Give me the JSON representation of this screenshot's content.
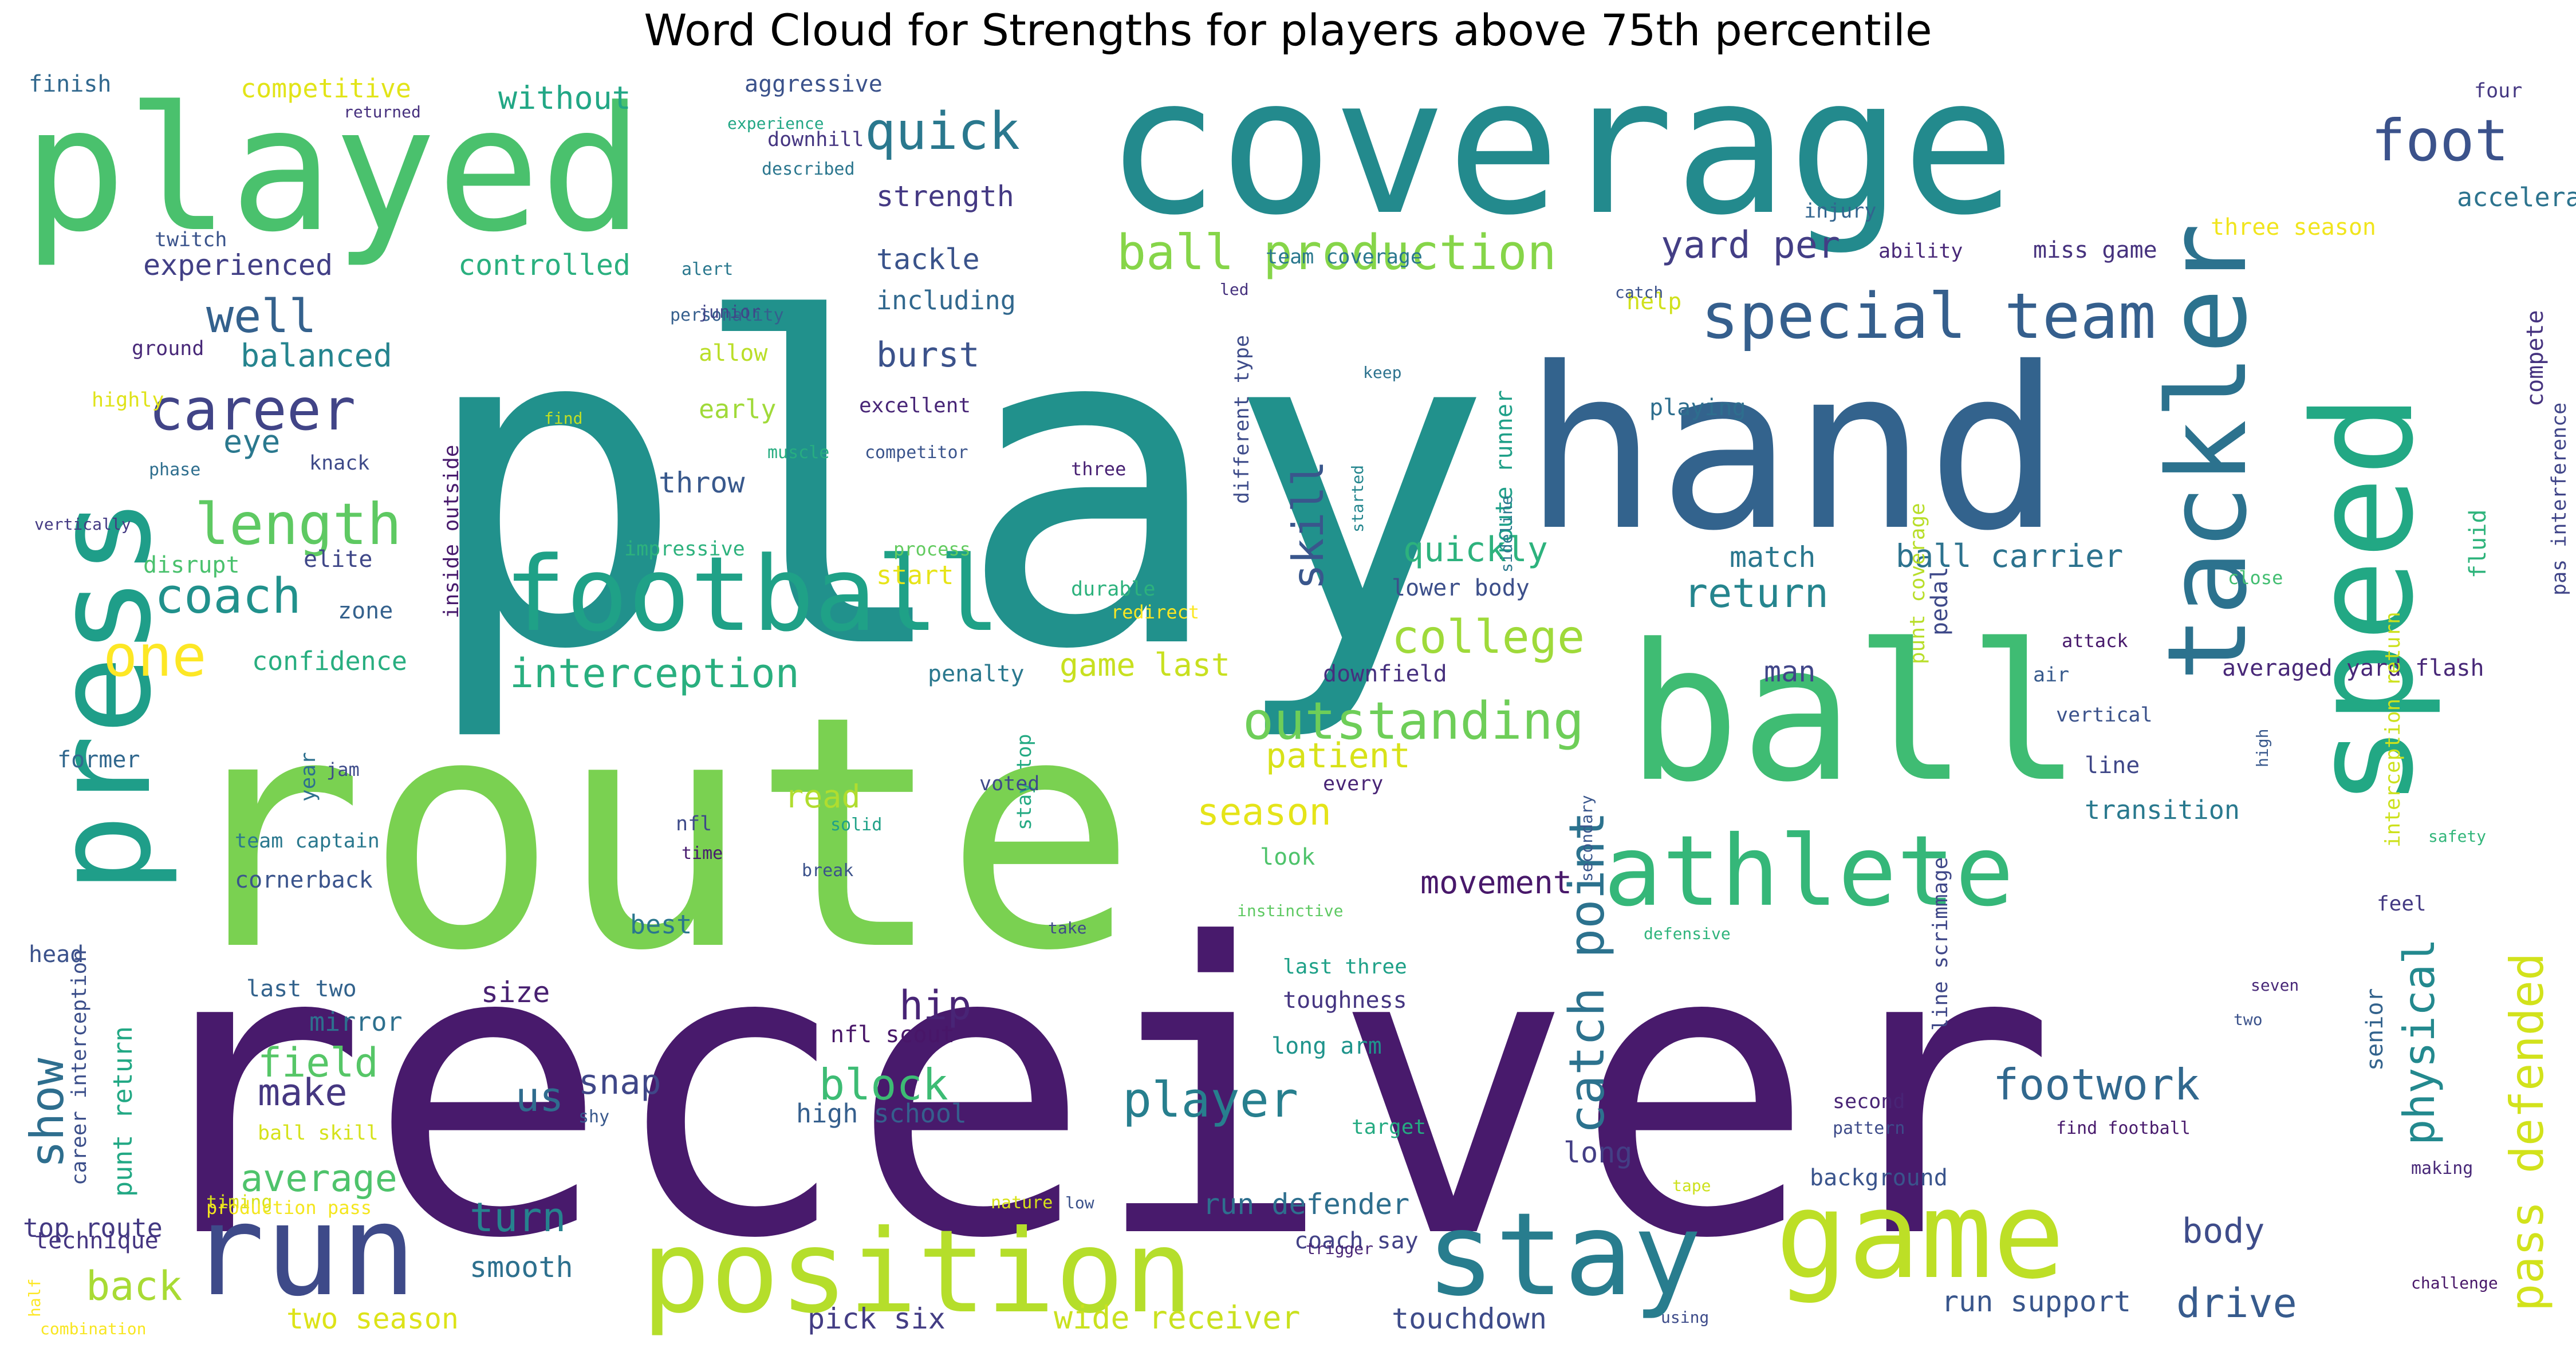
{
  "chart_data": {
    "type": "wordcloud",
    "title": "Word Cloud for Strengths for players above 75th percentile",
    "words": [
      {
        "text": "receiver",
        "weight": 100,
        "color": "#481a6c"
      },
      {
        "text": "play",
        "weight": 90,
        "color": "#21918c"
      },
      {
        "text": "route",
        "weight": 80,
        "color": "#7ad151"
      },
      {
        "text": "coverage",
        "weight": 62,
        "color": "#238a8d"
      },
      {
        "text": "hand",
        "weight": 60,
        "color": "#33638d"
      },
      {
        "text": "ball",
        "weight": 55,
        "color": "#3fbc73"
      },
      {
        "text": "played",
        "weight": 50,
        "color": "#4ac16d"
      },
      {
        "text": "press",
        "weight": 45,
        "color": "#1f9e89"
      },
      {
        "text": "game",
        "weight": 42,
        "color": "#bddf26"
      },
      {
        "text": "stay",
        "weight": 40,
        "color": "#287d8e"
      },
      {
        "text": "position",
        "weight": 38,
        "color": "#b5de2b"
      },
      {
        "text": "speed",
        "weight": 36,
        "color": "#22a884"
      },
      {
        "text": "run",
        "weight": 34,
        "color": "#3e4a89"
      },
      {
        "text": "tackler",
        "weight": 32,
        "color": "#2c728e"
      },
      {
        "text": "athlete",
        "weight": 30,
        "color": "#35b779"
      },
      {
        "text": "football",
        "weight": 28,
        "color": "#1fa187"
      },
      {
        "text": "special team",
        "weight": 18,
        "color": "#355f8d"
      },
      {
        "text": "foot",
        "weight": 16,
        "color": "#3b528b"
      },
      {
        "text": "length",
        "weight": 15,
        "color": "#5ec962"
      },
      {
        "text": "career",
        "weight": 15,
        "color": "#414487"
      },
      {
        "text": "outstanding",
        "weight": 14,
        "color": "#6ece58"
      },
      {
        "text": "ball production",
        "weight": 14,
        "color": "#86d549"
      },
      {
        "text": "quick",
        "weight": 14,
        "color": "#2a788e"
      },
      {
        "text": "pass defended",
        "weight": 13,
        "color": "#d2e21b"
      },
      {
        "text": "interception",
        "weight": 12,
        "color": "#29af7f"
      },
      {
        "text": "catch point",
        "weight": 13,
        "color": "#2c728e"
      },
      {
        "text": "player",
        "weight": 13,
        "color": "#277f8e"
      },
      {
        "text": "footwork",
        "weight": 12,
        "color": "#31688e"
      },
      {
        "text": "block",
        "weight": 12,
        "color": "#3dbc74"
      },
      {
        "text": "physical",
        "weight": 12,
        "color": "#23898e"
      },
      {
        "text": "one",
        "weight": 12,
        "color": "#fde725"
      },
      {
        "text": "coach",
        "weight": 12,
        "color": "#21918c"
      },
      {
        "text": "college",
        "weight": 11,
        "color": "#9fda3a"
      },
      {
        "text": "return",
        "weight": 11,
        "color": "#25858e"
      },
      {
        "text": "skill",
        "weight": 11,
        "color": "#39568c"
      },
      {
        "text": "well",
        "weight": 11,
        "color": "#34618d"
      },
      {
        "text": "drive",
        "weight": 11,
        "color": "#375b8d"
      },
      {
        "text": "turn",
        "weight": 11,
        "color": "#26828e"
      },
      {
        "text": "back",
        "weight": 11,
        "color": "#a8db34"
      },
      {
        "text": "average",
        "weight": 11,
        "color": "#4ec36b"
      },
      {
        "text": "hip",
        "weight": 11,
        "color": "#482576"
      },
      {
        "text": "show",
        "weight": 11,
        "color": "#2e6e8e"
      },
      {
        "text": "yard per",
        "weight": 10,
        "color": "#433e85"
      },
      {
        "text": "body",
        "weight": 10,
        "color": "#3e4c8a"
      },
      {
        "text": "field",
        "weight": 10,
        "color": "#56c667"
      },
      {
        "text": "make",
        "weight": 10,
        "color": "#453781"
      },
      {
        "text": "us",
        "weight": 10,
        "color": "#2f6c8e"
      },
      {
        "text": "snap",
        "weight": 10,
        "color": "#3f4788"
      },
      {
        "text": "season",
        "weight": 10,
        "color": "#e5e419"
      },
      {
        "text": "patient",
        "weight": 9,
        "color": "#d8e219"
      },
      {
        "text": "game last",
        "weight": 9,
        "color": "#c8e020"
      },
      {
        "text": "eye",
        "weight": 9,
        "color": "#2a788e"
      },
      {
        "text": "burst",
        "weight": 9,
        "color": "#3b528b"
      },
      {
        "text": "balanced",
        "weight": 9,
        "color": "#25848e"
      },
      {
        "text": "match",
        "weight": 9,
        "color": "#2a778e"
      },
      {
        "text": "man",
        "weight": 9,
        "color": "#404588"
      },
      {
        "text": "quickly",
        "weight": 9,
        "color": "#2db27d"
      },
      {
        "text": "ball carrier",
        "weight": 9,
        "color": "#2c728e"
      },
      {
        "text": "two season",
        "weight": 8,
        "color": "#dde318"
      },
      {
        "text": "wide receiver",
        "weight": 8,
        "color": "#cae11f"
      },
      {
        "text": "run support",
        "weight": 8,
        "color": "#39568c"
      },
      {
        "text": "run defender",
        "weight": 8,
        "color": "#2e6f8e"
      },
      {
        "text": "movement",
        "weight": 8,
        "color": "#48186a"
      },
      {
        "text": "touchdown",
        "weight": 8,
        "color": "#3e4c8a"
      },
      {
        "text": "pick six",
        "weight": 8,
        "color": "#433d84"
      },
      {
        "text": "long",
        "weight": 8,
        "color": "#433e85"
      },
      {
        "text": "smooth",
        "weight": 8,
        "color": "#2d708e"
      },
      {
        "text": "size",
        "weight": 8,
        "color": "#482071"
      },
      {
        "text": "throw",
        "weight": 8,
        "color": "#38588c"
      },
      {
        "text": "compete",
        "weight": 8,
        "color": "#46337f"
      },
      {
        "text": "controlled",
        "weight": 8,
        "color": "#2ab07f"
      },
      {
        "text": "experienced",
        "weight": 8,
        "color": "#424086"
      },
      {
        "text": "tackle",
        "weight": 8,
        "color": "#3a538b"
      },
      {
        "text": "including",
        "weight": 8,
        "color": "#31688e"
      },
      {
        "text": "strength",
        "weight": 8,
        "color": "#443983"
      },
      {
        "text": "without",
        "weight": 8,
        "color": "#22a785"
      },
      {
        "text": "competitive",
        "weight": 7,
        "color": "#e2e418"
      },
      {
        "text": "accelerate",
        "weight": 7,
        "color": "#2c738e"
      },
      {
        "text": "confidence",
        "weight": 7,
        "color": "#28ae80"
      },
      {
        "text": "transition",
        "weight": 7,
        "color": "#29798e"
      },
      {
        "text": "read",
        "weight": 7,
        "color": "#b0dd2f"
      },
      {
        "text": "punt return",
        "weight": 7,
        "color": "#22a884"
      },
      {
        "text": "high school",
        "weight": 7,
        "color": "#355f8d"
      },
      {
        "text": "top route",
        "weight": 7,
        "color": "#443a83"
      },
      {
        "text": "toughness",
        "weight": 6,
        "color": "#453581"
      },
      {
        "text": "long arm",
        "weight": 6,
        "color": "#1f948c"
      },
      {
        "text": "three season",
        "weight": 6,
        "color": "#f1e51d"
      },
      {
        "text": "lower body",
        "weight": 6,
        "color": "#3c4f8a"
      },
      {
        "text": "downfield",
        "weight": 6,
        "color": "#46307e"
      },
      {
        "text": "mirror",
        "weight": 6,
        "color": "#2d708e"
      },
      {
        "text": "last two",
        "weight": 6,
        "color": "#33638d"
      },
      {
        "text": "coach say",
        "weight": 6,
        "color": "#424186"
      },
      {
        "text": "background",
        "weight": 6,
        "color": "#3a548c"
      },
      {
        "text": "best",
        "weight": 6,
        "color": "#2a768e"
      },
      {
        "text": "zone",
        "weight": 6,
        "color": "#34618d"
      },
      {
        "text": "start",
        "weight": 6,
        "color": "#e7e419"
      },
      {
        "text": "early",
        "weight": 6,
        "color": "#a0da39"
      },
      {
        "text": "allow",
        "weight": 6,
        "color": "#bade28"
      },
      {
        "text": "ground",
        "weight": 5,
        "color": "#482878"
      },
      {
        "text": "twitch",
        "weight": 5,
        "color": "#3a538b"
      },
      {
        "text": "highly",
        "weight": 5,
        "color": "#dfe318"
      },
      {
        "text": "disrupt",
        "weight": 5,
        "color": "#4ac16d"
      },
      {
        "text": "finish",
        "weight": 5,
        "color": "#31688e"
      },
      {
        "text": "aggressive",
        "weight": 5,
        "color": "#3b528b"
      },
      {
        "text": "help",
        "weight": 5,
        "color": "#d0e11c"
      },
      {
        "text": "playing",
        "weight": 5,
        "color": "#2e6e8e"
      },
      {
        "text": "ball skill",
        "weight": 5,
        "color": "#d5e21a"
      },
      {
        "text": "technique",
        "weight": 5,
        "color": "#453581"
      },
      {
        "text": "nfl",
        "weight": 5,
        "color": "#3e4a89"
      },
      {
        "text": "nfl scout",
        "weight": 5,
        "color": "#481668"
      },
      {
        "text": "route runner",
        "weight": 5,
        "color": "#1fa088"
      },
      {
        "text": "miss game",
        "weight": 5,
        "color": "#46327e"
      },
      {
        "text": "four",
        "weight": 4,
        "color": "#453882"
      },
      {
        "text": "senior",
        "weight": 5,
        "color": "#33638d"
      },
      {
        "text": "averaged yard flash",
        "weight": 5,
        "color": "#482878"
      },
      {
        "text": "fluid",
        "weight": 5,
        "color": "#2fb47c"
      },
      {
        "text": "head",
        "weight": 5,
        "color": "#3b528b"
      },
      {
        "text": "look",
        "weight": 5,
        "color": "#4ec36b"
      },
      {
        "text": "former",
        "weight": 5,
        "color": "#31688e"
      },
      {
        "text": "cornerback",
        "weight": 5,
        "color": "#3a548c"
      },
      {
        "text": "team captain",
        "weight": 4,
        "color": "#2a788e"
      },
      {
        "text": "elite",
        "weight": 4,
        "color": "#3f4788"
      },
      {
        "text": "durable",
        "weight": 4,
        "color": "#2db27d"
      },
      {
        "text": "redirect",
        "weight": 4,
        "color": "#fbe723"
      },
      {
        "text": "vertical",
        "weight": 4,
        "color": "#3b528b"
      },
      {
        "text": "attack",
        "weight": 4,
        "color": "#481a6c"
      },
      {
        "text": "safety",
        "weight": 4,
        "color": "#32b67a"
      },
      {
        "text": "close",
        "weight": 4,
        "color": "#42be71"
      },
      {
        "text": "air",
        "weight": 4,
        "color": "#375a8c"
      },
      {
        "text": "pedal",
        "weight": 4,
        "color": "#3e4989"
      },
      {
        "text": "line",
        "weight": 4,
        "color": "#3f4788"
      },
      {
        "text": "every",
        "weight": 4,
        "color": "#482475"
      },
      {
        "text": "jam",
        "weight": 4,
        "color": "#3e4c8a"
      },
      {
        "text": "penalty",
        "weight": 4,
        "color": "#2a788e"
      },
      {
        "text": "process",
        "weight": 4,
        "color": "#62cb5f"
      },
      {
        "text": "impressive",
        "weight": 4,
        "color": "#2db27d"
      },
      {
        "text": "excellent",
        "weight": 4,
        "color": "#482677"
      },
      {
        "text": "competitor",
        "weight": 3,
        "color": "#3a548c"
      },
      {
        "text": "muscle",
        "weight": 3,
        "color": "#27ad81"
      },
      {
        "text": "three",
        "weight": 4,
        "color": "#482173"
      },
      {
        "text": "knack",
        "weight": 4,
        "color": "#3e4a89"
      },
      {
        "text": "phase",
        "weight": 3,
        "color": "#2e6e8e"
      },
      {
        "text": "vertically",
        "weight": 3,
        "color": "#443a83"
      },
      {
        "text": "personality",
        "weight": 3,
        "color": "#355f8d"
      },
      {
        "text": "alert",
        "weight": 3,
        "color": "#2a788e"
      },
      {
        "text": "junior",
        "weight": 4,
        "color": "#404588"
      },
      {
        "text": "described",
        "weight": 3,
        "color": "#2a768e"
      },
      {
        "text": "downhill",
        "weight": 4,
        "color": "#453581"
      },
      {
        "text": "experience",
        "weight": 3,
        "color": "#22a785"
      },
      {
        "text": "returned",
        "weight": 3,
        "color": "#46307e"
      },
      {
        "text": "injury",
        "weight": 4,
        "color": "#32648e"
      },
      {
        "text": "ability",
        "weight": 4,
        "color": "#482878"
      },
      {
        "text": "catch",
        "weight": 3,
        "color": "#3b528b"
      },
      {
        "text": "team coverage",
        "weight": 4,
        "color": "#2a788e"
      },
      {
        "text": "led",
        "weight": 3,
        "color": "#46327e"
      },
      {
        "text": "different type",
        "weight": 4,
        "color": "#3e4c8a"
      },
      {
        "text": "keep",
        "weight": 3,
        "color": "#2c728e"
      },
      {
        "text": "started",
        "weight": 3,
        "color": "#24868e"
      },
      {
        "text": "sideline",
        "weight": 3,
        "color": "#2a788e"
      },
      {
        "text": "find",
        "weight": 3,
        "color": "#c2df23"
      },
      {
        "text": "inside outside",
        "weight": 4,
        "color": "#481b6d"
      },
      {
        "text": "punt coverage",
        "weight": 4,
        "color": "#b8de29"
      },
      {
        "text": "interception return",
        "weight": 4,
        "color": "#cde11d"
      },
      {
        "text": "pas interference",
        "weight": 4,
        "color": "#404588"
      },
      {
        "text": "high",
        "weight": 3,
        "color": "#38588c"
      },
      {
        "text": "secondary",
        "weight": 3,
        "color": "#39568c"
      },
      {
        "text": "stay top",
        "weight": 4,
        "color": "#24aa83"
      },
      {
        "text": "voted",
        "weight": 4,
        "color": "#3e4a89"
      },
      {
        "text": "solid",
        "weight": 3,
        "color": "#1fa187"
      },
      {
        "text": "break",
        "weight": 3,
        "color": "#3b528b"
      },
      {
        "text": "time",
        "weight": 3,
        "color": "#481c6e"
      },
      {
        "text": "year",
        "weight": 4,
        "color": "#2d708e"
      },
      {
        "text": "career interception",
        "weight": 4,
        "color": "#3c4f8a"
      },
      {
        "text": "instinctive",
        "weight": 3,
        "color": "#5ec962"
      },
      {
        "text": "take",
        "weight": 3,
        "color": "#3e4a89"
      },
      {
        "text": "defensive",
        "weight": 3,
        "color": "#2fb47c"
      },
      {
        "text": "feel",
        "weight": 4,
        "color": "#443a83"
      },
      {
        "text": "two",
        "weight": 3,
        "color": "#3b528b"
      },
      {
        "text": "seven",
        "weight": 3,
        "color": "#482878"
      },
      {
        "text": "target",
        "weight": 4,
        "color": "#25ab82"
      },
      {
        "text": "line scrimmage",
        "weight": 4,
        "color": "#3f4788"
      },
      {
        "text": "last three",
        "weight": 4,
        "color": "#1fa188"
      },
      {
        "text": "shy",
        "weight": 3,
        "color": "#38588c"
      },
      {
        "text": "second",
        "weight": 4,
        "color": "#482475"
      },
      {
        "text": "pattern",
        "weight": 3,
        "color": "#3e4c8a"
      },
      {
        "text": "find football",
        "weight": 3,
        "color": "#481a6c"
      },
      {
        "text": "making",
        "weight": 3,
        "color": "#482878"
      },
      {
        "text": "nature",
        "weight": 3,
        "color": "#d8e219"
      },
      {
        "text": "low",
        "weight": 3,
        "color": "#3b528b"
      },
      {
        "text": "tape",
        "weight": 3,
        "color": "#cde11d"
      },
      {
        "text": "timing",
        "weight": 4,
        "color": "#d5e21a"
      },
      {
        "text": "production pass",
        "weight": 4,
        "color": "#f4e61e"
      },
      {
        "text": "trigger",
        "weight": 3,
        "color": "#482475"
      },
      {
        "text": "challenge",
        "weight": 3,
        "color": "#481769"
      },
      {
        "text": "half",
        "weight": 3,
        "color": "#fde725"
      },
      {
        "text": "combination",
        "weight": 3,
        "color": "#f8e621"
      },
      {
        "text": "using",
        "weight": 3,
        "color": "#3e4c8a"
      }
    ]
  }
}
